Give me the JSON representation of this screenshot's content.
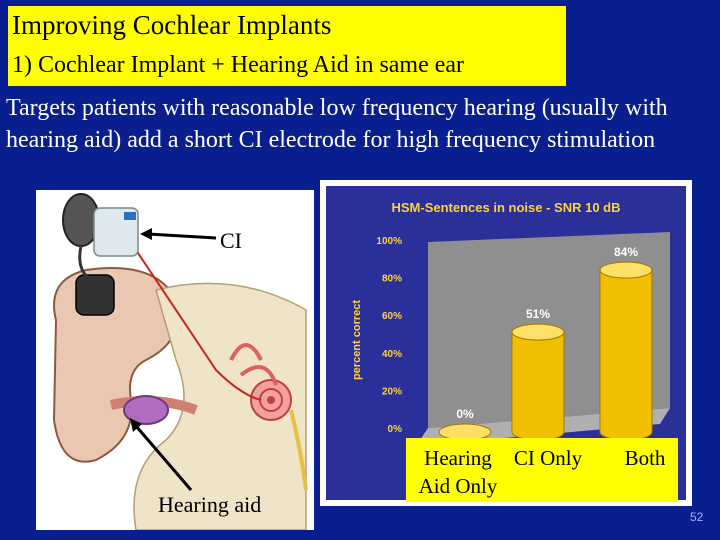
{
  "slide": {
    "title": "Improving Cochlear Implants",
    "subtitle": "1)  Cochlear Implant + Hearing Aid in same ear",
    "body": "Targets patients with reasonable low frequency hearing (usually with hearing aid)  add a short CI electrode for high frequency stimulation",
    "label_ci": "CI",
    "label_hearing_aid": "Hearing aid",
    "page_number": "52"
  },
  "chart_data": {
    "type": "bar",
    "title": "HSM-Sentences in noise - SNR 10 dB",
    "ylabel": "percent correct",
    "categories": [
      "Hearing Aid Only",
      "CI Only",
      "Both"
    ],
    "values": [
      0,
      51,
      84
    ],
    "value_labels": [
      "0%",
      "51%",
      "84%"
    ],
    "yticks": [
      "0%",
      "20%",
      "40%",
      "60%",
      "80%",
      "100%"
    ],
    "ylim": [
      0,
      100
    ],
    "bar_color": "#f0c000",
    "panel_color": "#2a2f9a"
  }
}
